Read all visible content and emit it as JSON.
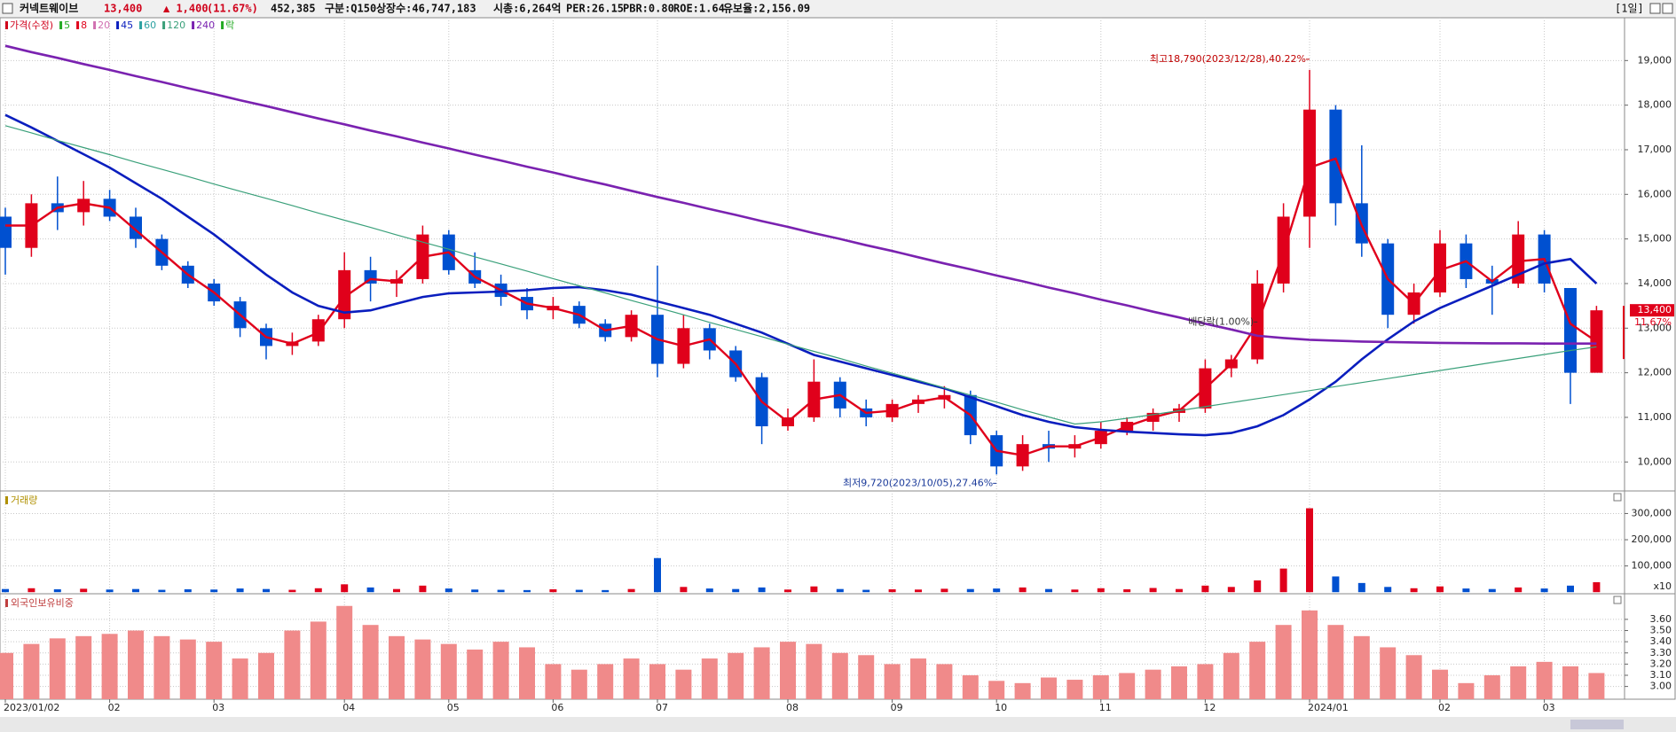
{
  "header": {
    "name": "커넥트웨이브",
    "price": "13,400",
    "change": "▲ 1,400",
    "change_pct": "(11.67%)",
    "volume": "452,385",
    "market": "구분:Q150",
    "shares": "상장수:46,747,183",
    "cap": "시총:6,264억",
    "per": "PER:26.15",
    "pbr": "PBR:0.80",
    "roe": "ROE:1.64",
    "reserve": "유보율:2,156.09",
    "period": "[1일]"
  },
  "chart_data": [
    {
      "type": "candlestick",
      "legend_title": "가격(수정)",
      "legend_title_color": "#d0021b",
      "categories": [
        "2023/01/02",
        null,
        null,
        null,
        "02",
        null,
        null,
        null,
        "03",
        null,
        null,
        null,
        null,
        "04",
        null,
        null,
        null,
        "05",
        null,
        null,
        null,
        "06",
        null,
        null,
        null,
        "07",
        null,
        null,
        null,
        null,
        "08",
        null,
        null,
        null,
        "09",
        null,
        null,
        null,
        "10",
        null,
        null,
        null,
        "11",
        null,
        null,
        null,
        "12",
        null,
        null,
        null,
        "2024/01",
        null,
        null,
        null,
        null,
        "02",
        null,
        null,
        null,
        "03",
        null,
        null
      ],
      "open": [
        15500,
        14800,
        15800,
        15600,
        15900,
        15500,
        15000,
        14400,
        14000,
        13600,
        13000,
        12600,
        12700,
        13200,
        14300,
        14000,
        14100,
        15100,
        14300,
        14000,
        13700,
        13400,
        13500,
        13100,
        12800,
        13300,
        12200,
        13000,
        12500,
        11900,
        10800,
        11000,
        11800,
        11200,
        11000,
        11300,
        11400,
        11500,
        10600,
        9900,
        10400,
        10300,
        10400,
        10700,
        10900,
        11100,
        11200,
        12100,
        12300,
        14000,
        15500,
        17900,
        15800,
        14900,
        13300,
        13800,
        14900,
        14100,
        14000,
        15100,
        13900,
        12000
      ],
      "high": [
        15700,
        16000,
        16400,
        16300,
        16100,
        15700,
        15100,
        14500,
        14100,
        13700,
        13100,
        12900,
        13300,
        14700,
        14600,
        14300,
        15300,
        15200,
        14700,
        14200,
        13900,
        13700,
        13600,
        13200,
        13400,
        14400,
        13300,
        13100,
        12600,
        12000,
        11200,
        12300,
        11900,
        11400,
        11400,
        11500,
        11700,
        11600,
        10700,
        10600,
        10700,
        10600,
        10900,
        11000,
        11200,
        11300,
        12300,
        12400,
        14300,
        15800,
        18790,
        18000,
        17100,
        15000,
        14000,
        15200,
        15100,
        14400,
        15400,
        15200,
        13900,
        13500
      ],
      "low": [
        14200,
        14600,
        15200,
        15300,
        15400,
        14800,
        14300,
        13900,
        13500,
        12800,
        12300,
        12400,
        12600,
        13000,
        13600,
        13700,
        14000,
        14200,
        13900,
        13500,
        13200,
        13200,
        13000,
        12700,
        12700,
        11900,
        12100,
        12300,
        11800,
        10400,
        10700,
        10900,
        11000,
        10800,
        10900,
        11100,
        11200,
        10400,
        9720,
        9800,
        10000,
        10100,
        10300,
        10600,
        10700,
        10900,
        11100,
        11900,
        12200,
        13800,
        14800,
        15300,
        14600,
        13000,
        13100,
        13700,
        13900,
        13300,
        13900,
        13800,
        11300,
        12100
      ],
      "close": [
        14800,
        15800,
        15600,
        15900,
        15500,
        15000,
        14400,
        14000,
        13600,
        13000,
        12600,
        12700,
        13200,
        14300,
        14000,
        14100,
        15100,
        14300,
        14000,
        13700,
        13400,
        13500,
        13100,
        12800,
        13300,
        12200,
        13000,
        12500,
        11900,
        10800,
        11000,
        11800,
        11200,
        11000,
        11300,
        11400,
        11500,
        10600,
        9900,
        10400,
        10300,
        10400,
        10700,
        10900,
        11100,
        11200,
        12100,
        12300,
        14000,
        15500,
        17900,
        15800,
        14900,
        13300,
        13800,
        14900,
        14100,
        14000,
        15100,
        14000,
        12000,
        13400
      ],
      "up_color": "#e0001b",
      "down_color": "#0050d0",
      "series": [
        {
          "name": "8",
          "color": "#e0001b",
          "width": 2.4,
          "values": [
            15300,
            15300,
            15700,
            15800,
            15700,
            15200,
            14700,
            14200,
            13800,
            13300,
            12800,
            12650,
            12900,
            13700,
            14100,
            14050,
            14600,
            14700,
            14150,
            13850,
            13550,
            13450,
            13300,
            12950,
            13050,
            12750,
            12600,
            12750,
            12200,
            11350,
            10900,
            11400,
            11500,
            11100,
            11150,
            11350,
            11450,
            11050,
            10250,
            10150,
            10350,
            10350,
            10550,
            10800,
            11000,
            11150,
            11650,
            12200,
            13100,
            14700,
            16600,
            16800,
            15300,
            14100,
            13550,
            14300,
            14500,
            14050,
            14500,
            14550,
            13100,
            12700
          ]
        },
        {
          "name": "45",
          "color": "#0a1ebe",
          "width": 2.6,
          "values": [
            17780,
            17500,
            17200,
            16900,
            16600,
            16250,
            15900,
            15500,
            15100,
            14650,
            14200,
            13800,
            13500,
            13350,
            13400,
            13550,
            13700,
            13780,
            13800,
            13820,
            13850,
            13900,
            13920,
            13850,
            13750,
            13600,
            13450,
            13300,
            13100,
            12900,
            12650,
            12400,
            12250,
            12100,
            11950,
            11800,
            11650,
            11450,
            11250,
            11050,
            10900,
            10780,
            10720,
            10680,
            10650,
            10620,
            10600,
            10650,
            10800,
            11050,
            11400,
            11800,
            12300,
            12750,
            13150,
            13450,
            13700,
            13950,
            14200,
            14450,
            14550,
            14000
          ]
        },
        {
          "name": "120",
          "color": "#3aa07a",
          "width": 1.2,
          "values": [
            17540,
            17380,
            17210,
            17050,
            16890,
            16720,
            16560,
            16400,
            16230,
            16070,
            15910,
            15750,
            15580,
            15420,
            15260,
            15090,
            14930,
            14770,
            14600,
            14440,
            14280,
            14110,
            13950,
            13790,
            13620,
            13460,
            13300,
            13130,
            12970,
            12810,
            12640,
            12480,
            12320,
            12150,
            11990,
            11830,
            11660,
            11500,
            11340,
            11170,
            11010,
            10850,
            10900,
            10980,
            11060,
            11150,
            11240,
            11330,
            11420,
            11510,
            11600,
            11690,
            11780,
            11870,
            11960,
            12050,
            12140,
            12230,
            12320,
            12410,
            12500,
            12580
          ]
        },
        {
          "name": "240",
          "color": "#7a22b0",
          "width": 2.6,
          "values": [
            19330,
            19190,
            19060,
            18920,
            18790,
            18650,
            18520,
            18380,
            18250,
            18110,
            17980,
            17840,
            17700,
            17570,
            17430,
            17300,
            17160,
            17030,
            16890,
            16760,
            16620,
            16490,
            16350,
            16220,
            16080,
            15940,
            15810,
            15670,
            15540,
            15400,
            15270,
            15130,
            15000,
            14860,
            14730,
            14590,
            14450,
            14320,
            14180,
            14050,
            13910,
            13780,
            13640,
            13510,
            13370,
            13240,
            13100,
            12970,
            12830,
            12780,
            12740,
            12720,
            12700,
            12690,
            12680,
            12670,
            12665,
            12660,
            12660,
            12655,
            12655,
            12655
          ]
        }
      ],
      "extra_legend": [
        {
          "name": "5",
          "color": "#22aa22"
        },
        {
          "name": "20",
          "color": "#d070b0"
        },
        {
          "name": "60",
          "color": "#2aa0a0"
        },
        {
          "name": "락",
          "color": "#22aa22"
        }
      ],
      "ylim": [
        9350,
        19960
      ],
      "yticks": [
        {
          "value": 10000,
          "label": "10,000"
        },
        {
          "value": 11000,
          "label": "11,000"
        },
        {
          "value": 12000,
          "label": "12,000"
        },
        {
          "value": 13000,
          "label": "13,000"
        },
        {
          "value": 14000,
          "label": "14,000"
        },
        {
          "value": 15000,
          "label": "15,000"
        },
        {
          "value": 16000,
          "label": "16,000"
        },
        {
          "value": 17000,
          "label": "17,000"
        },
        {
          "value": 18000,
          "label": "18,000"
        },
        {
          "value": 19000,
          "label": "19,000"
        }
      ],
      "last_price": {
        "value": 13400,
        "label": "13,400"
      },
      "last_pct": "11.67%",
      "annotations": [
        {
          "text": "최고18,790(2023/12/28),40.22%",
          "index": 50,
          "value": 18790,
          "color": "#c00000"
        },
        {
          "text": "최저9,720(2023/10/05),27.46%",
          "index": 38,
          "value": 9720,
          "color": "#1a3a9a"
        },
        {
          "text": "배당락(1.00%)",
          "index": 48,
          "value": 12900,
          "color": "#333333"
        }
      ],
      "grid": true
    },
    {
      "type": "bar",
      "title": "거래량",
      "title_color": "#b09000",
      "unit_label": "x10",
      "values": [
        12000,
        15000,
        11000,
        13000,
        10000,
        12000,
        9000,
        11000,
        10000,
        14000,
        12000,
        9000,
        15000,
        30000,
        18000,
        12000,
        25000,
        14000,
        10000,
        9000,
        8000,
        11000,
        9000,
        8000,
        12000,
        130000,
        20000,
        14000,
        12000,
        18000,
        10000,
        22000,
        12000,
        9000,
        11000,
        10000,
        13000,
        12000,
        14000,
        18000,
        12000,
        10000,
        15000,
        11000,
        16000,
        12000,
        25000,
        20000,
        45000,
        90000,
        320000,
        60000,
        35000,
        20000,
        15000,
        22000,
        14000,
        12000,
        18000,
        14000,
        25000,
        38000
      ],
      "ylim": [
        -6000,
        386000
      ],
      "yticks": [
        {
          "value": 100000,
          "label": "100,000"
        },
        {
          "value": 200000,
          "label": "200,000"
        },
        {
          "value": 300000,
          "label": "300,000"
        }
      ],
      "grid": true
    },
    {
      "type": "bar",
      "title": "외국인보유비중",
      "title_color": "#c04040",
      "color": "#f08a8a",
      "values": [
        3.3,
        3.38,
        3.43,
        3.45,
        3.47,
        3.5,
        3.45,
        3.42,
        3.4,
        3.25,
        3.3,
        3.5,
        3.58,
        3.72,
        3.55,
        3.45,
        3.42,
        3.38,
        3.33,
        3.4,
        3.35,
        3.2,
        3.15,
        3.2,
        3.25,
        3.2,
        3.15,
        3.25,
        3.3,
        3.35,
        3.4,
        3.38,
        3.3,
        3.28,
        3.2,
        3.25,
        3.2,
        3.1,
        3.05,
        3.03,
        3.08,
        3.06,
        3.1,
        3.12,
        3.15,
        3.18,
        3.2,
        3.3,
        3.4,
        3.55,
        3.68,
        3.55,
        3.45,
        3.35,
        3.28,
        3.15,
        3.03,
        3.1,
        3.18,
        3.22,
        3.18,
        3.12
      ],
      "ylim": [
        2.886,
        3.829
      ],
      "yticks": [
        {
          "value": 3.0,
          "label": "3.00"
        },
        {
          "value": 3.1,
          "label": "3.10"
        },
        {
          "value": 3.2,
          "label": "3.20"
        },
        {
          "value": 3.3,
          "label": "3.30"
        },
        {
          "value": 3.4,
          "label": "3.40"
        },
        {
          "value": 3.5,
          "label": "3.50"
        },
        {
          "value": 3.6,
          "label": "3.60"
        }
      ],
      "grid": true
    }
  ]
}
